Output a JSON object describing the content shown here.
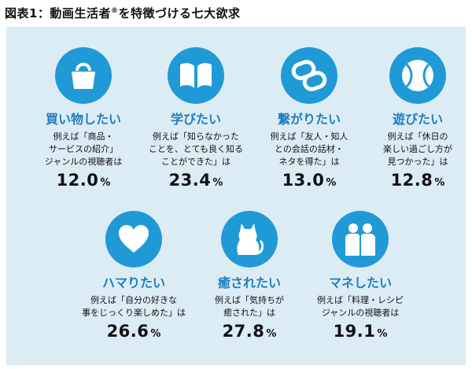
{
  "title": {
    "text": "図表1：動画生活者",
    "reg": "®",
    "rest": "を特徴づける七大欲求"
  },
  "items": [
    {
      "icon": "tote-bag-icon",
      "category": "買い物したい",
      "desc": [
        "例えば「商品・",
        "サービスの紹介」",
        "ジャンルの視聴者は"
      ],
      "value": "12.0",
      "unit": "%"
    },
    {
      "icon": "open-book-icon",
      "category": "学びたい",
      "desc": [
        "例えば「知らなかった",
        "ことを、とても良く知る",
        "ことができた」は"
      ],
      "value": "23.4",
      "unit": "%"
    },
    {
      "icon": "linked-rings-icon",
      "category": "繋がりたい",
      "desc": [
        "例えば「友人・知人",
        "との会話の話材・",
        "ネタを得た」は"
      ],
      "value": "13.0",
      "unit": "%"
    },
    {
      "icon": "tennis-ball-icon",
      "category": "遊びたい",
      "desc": [
        "例えば「休日の",
        "楽しい過ごし方が",
        "見つかった」は"
      ],
      "value": "12.8",
      "unit": "%"
    },
    {
      "icon": "heart-icon",
      "category": "ハマりたい",
      "desc": [
        "例えば「自分の好きな",
        "事をじっくり楽しめた」は"
      ],
      "value": "26.6",
      "unit": "%"
    },
    {
      "icon": "cat-icon",
      "category": "癒されたい",
      "desc": [
        "例えば「気持ちが",
        "癒された」は"
      ],
      "value": "27.8",
      "unit": "%"
    },
    {
      "icon": "two-people-icon",
      "category": "マネしたい",
      "desc": [
        "例えば「料理・レシピ",
        "ジャンルの視聴者は"
      ],
      "value": "19.1",
      "unit": "%"
    }
  ],
  "colors": {
    "accent": "#1f9ad6",
    "category_text": "#1f7fbf",
    "panel_bg": "#dcecf5"
  }
}
